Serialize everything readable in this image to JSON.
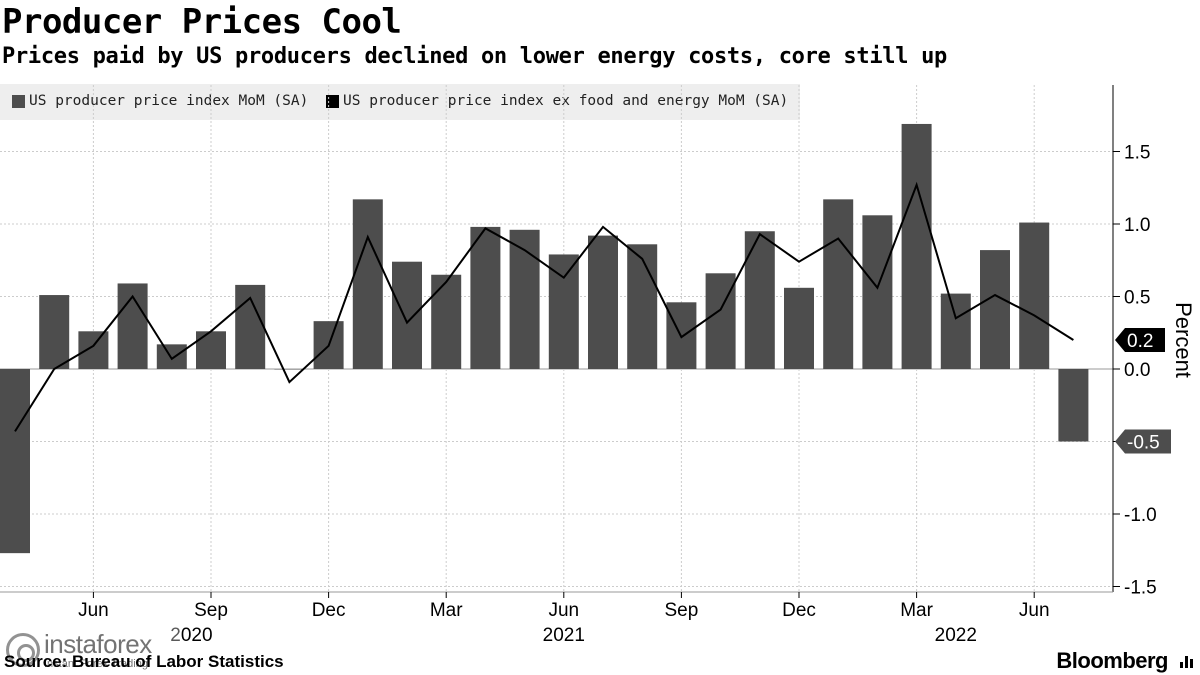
{
  "header": {
    "title": "Producer Prices Cool",
    "subtitle": "Prices paid by US producers declined on lower energy costs, core still up"
  },
  "footer": {
    "source": "Source: Bureau of Labor Statistics",
    "brand": "Bloomberg",
    "watermark_name": "instaforex",
    "watermark_tagline": "Instant Forex Trading"
  },
  "colors": {
    "bar": "#4d4d4d",
    "line": "#000000",
    "grid": "#cccccc",
    "legend_bg": "#eeeeee"
  },
  "chart_data": {
    "type": "bar",
    "title": "Producer Prices Cool",
    "subtitle": "Prices paid by US producers declined on lower energy costs, core still up",
    "ylabel": "Percent",
    "xlabel": "",
    "ylim": [
      -1.6,
      1.95
    ],
    "yticks": [
      -1.5,
      -1.0,
      -0.5,
      0.0,
      0.5,
      1.0,
      1.5
    ],
    "ytick_labels": [
      "-1.5",
      "-1.0",
      "-0.5",
      "0.0",
      "0.5",
      "1.0",
      "1.5"
    ],
    "grid": true,
    "legend_position": "top-left",
    "categories": [
      "Apr 2020",
      "May 2020",
      "Jun 2020",
      "Jul 2020",
      "Aug 2020",
      "Sep 2020",
      "Oct 2020",
      "Nov 2020",
      "Dec 2020",
      "Jan 2021",
      "Feb 2021",
      "Mar 2021",
      "Apr 2021",
      "May 2021",
      "Jun 2021",
      "Jul 2021",
      "Aug 2021",
      "Sep 2021",
      "Oct 2021",
      "Nov 2021",
      "Dec 2021",
      "Jan 2022",
      "Feb 2022",
      "Mar 2022",
      "Apr 2022",
      "May 2022",
      "Jun 2022",
      "Jul 2022"
    ],
    "month_ticks": [
      {
        "index": 2,
        "label": "Jun"
      },
      {
        "index": 5,
        "label": "Sep"
      },
      {
        "index": 8,
        "label": "Dec"
      },
      {
        "index": 11,
        "label": "Mar"
      },
      {
        "index": 14,
        "label": "Jun"
      },
      {
        "index": 17,
        "label": "Sep"
      },
      {
        "index": 20,
        "label": "Dec"
      },
      {
        "index": 23,
        "label": "Mar"
      },
      {
        "index": 26,
        "label": "Jun"
      }
    ],
    "year_labels": [
      {
        "index": 4.5,
        "label": "2020"
      },
      {
        "index": 14,
        "label": "2021"
      },
      {
        "index": 24,
        "label": "2022"
      }
    ],
    "series": [
      {
        "name": "US producer price index MoM (SA)",
        "type": "bar",
        "values": [
          -1.27,
          0.51,
          0.26,
          0.59,
          0.17,
          0.26,
          0.58,
          0.0,
          0.33,
          1.17,
          0.74,
          0.65,
          0.98,
          0.96,
          0.79,
          0.92,
          0.86,
          0.46,
          0.66,
          0.95,
          0.56,
          1.17,
          1.06,
          1.69,
          0.52,
          0.82,
          1.01,
          -0.5
        ]
      },
      {
        "name": "US producer price index ex food and energy MoM (SA)",
        "type": "line",
        "values": [
          -0.43,
          0.0,
          0.16,
          0.5,
          0.07,
          0.26,
          0.49,
          -0.09,
          0.16,
          0.91,
          0.32,
          0.6,
          0.97,
          0.82,
          0.63,
          0.98,
          0.76,
          0.22,
          0.41,
          0.93,
          0.74,
          0.9,
          0.56,
          1.27,
          0.35,
          0.51,
          0.37,
          0.2
        ]
      }
    ],
    "callouts": [
      {
        "series": 1,
        "label": "0.2",
        "value": 0.2
      },
      {
        "series": 0,
        "label": "-0.5",
        "value": -0.5
      }
    ]
  }
}
